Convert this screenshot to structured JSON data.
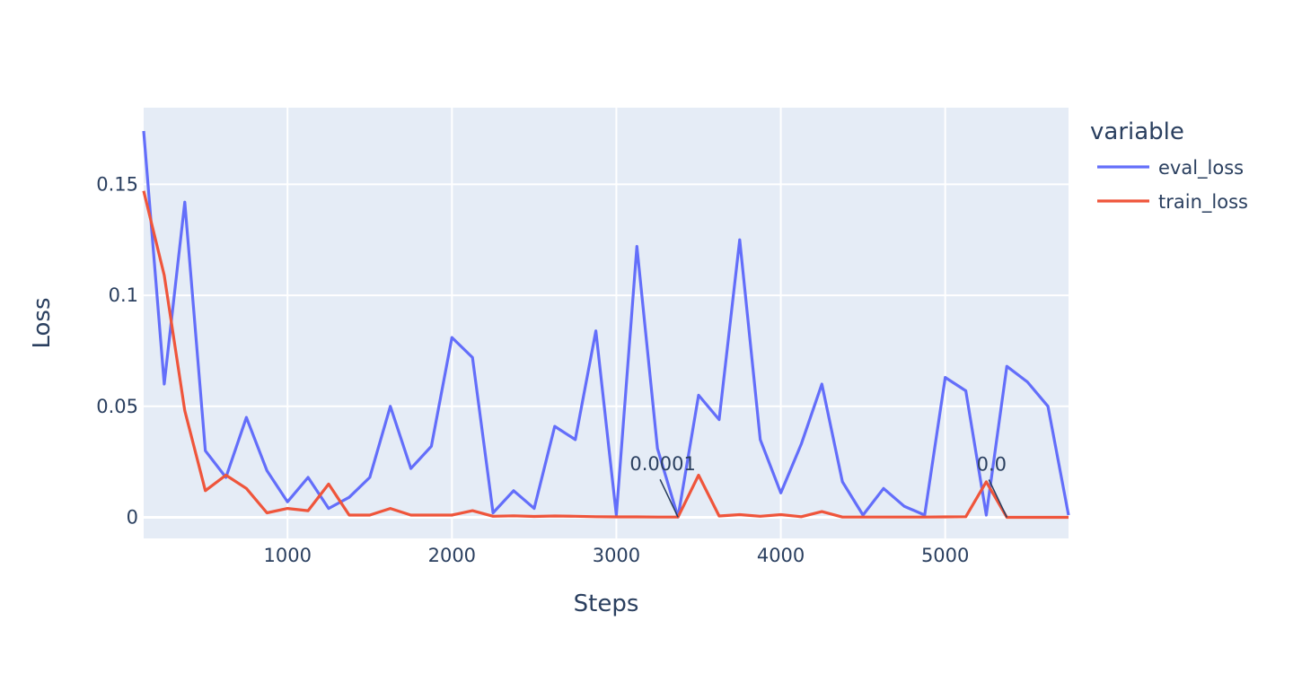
{
  "chart_data": {
    "type": "line",
    "xlabel": "Steps",
    "ylabel": "Loss",
    "xlim": [
      125,
      5750
    ],
    "ylim": [
      -0.0095,
      0.1845
    ],
    "x_ticks": [
      1000,
      2000,
      3000,
      4000,
      5000
    ],
    "y_ticks": [
      0,
      0.05,
      0.1,
      0.15
    ],
    "x_tick_labels": [
      "1000",
      "2000",
      "3000",
      "4000",
      "5000"
    ],
    "y_tick_labels": [
      "0",
      "0.05",
      "0.1",
      "0.15"
    ],
    "grid": true,
    "legend": {
      "title": "variable",
      "placement": "right",
      "entries": [
        "eval_loss",
        "train_loss"
      ]
    },
    "x": [
      125,
      250,
      375,
      500,
      625,
      750,
      875,
      1000,
      1125,
      1250,
      1375,
      1500,
      1625,
      1750,
      1875,
      2000,
      2125,
      2250,
      2375,
      2500,
      2625,
      2750,
      2875,
      3000,
      3125,
      3250,
      3375,
      3500,
      3625,
      3750,
      3875,
      4000,
      4125,
      4250,
      4375,
      4500,
      4625,
      4750,
      4875,
      5000,
      5125,
      5250,
      5375,
      5500,
      5625,
      5750
    ],
    "series": [
      {
        "name": "eval_loss",
        "color": "#636efa",
        "values": [
          0.174,
          0.06,
          0.142,
          0.03,
          0.018,
          0.045,
          0.021,
          0.007,
          0.018,
          0.004,
          0.009,
          0.018,
          0.05,
          0.022,
          0.032,
          0.081,
          0.072,
          0.002,
          0.012,
          0.004,
          0.041,
          0.035,
          0.084,
          0.001,
          0.122,
          0.031,
          0.0001,
          0.055,
          0.044,
          0.125,
          0.035,
          0.011,
          0.033,
          0.06,
          0.016,
          0.001,
          0.013,
          0.005,
          0.001,
          0.063,
          0.057,
          0.001,
          0.068,
          0.061,
          0.05,
          0.001
        ]
      },
      {
        "name": "train_loss",
        "color": "#ef553b",
        "values": [
          0.147,
          0.109,
          0.048,
          0.012,
          0.019,
          0.013,
          0.002,
          0.004,
          0.003,
          0.015,
          0.001,
          0.001,
          0.004,
          0.001,
          0.001,
          0.001,
          0.003,
          0.0005,
          0.0007,
          0.0004,
          0.0006,
          0.0005,
          0.0003,
          0.0002,
          0.0002,
          0.0001,
          0.0001,
          0.019,
          0.0006,
          0.0012,
          0.0005,
          0.0012,
          0.0003,
          0.0026,
          0.0001,
          0.0001,
          0.0001,
          0.0001,
          0.0001,
          0.0002,
          0.0003,
          0.016,
          0.0,
          0.0,
          0.0,
          0.0
        ]
      }
    ],
    "annotations": [
      {
        "text": "0.0001",
        "x": 3375,
        "y": 0.0001
      },
      {
        "text": "0.0",
        "x": 5375,
        "y": 0.0
      }
    ]
  }
}
